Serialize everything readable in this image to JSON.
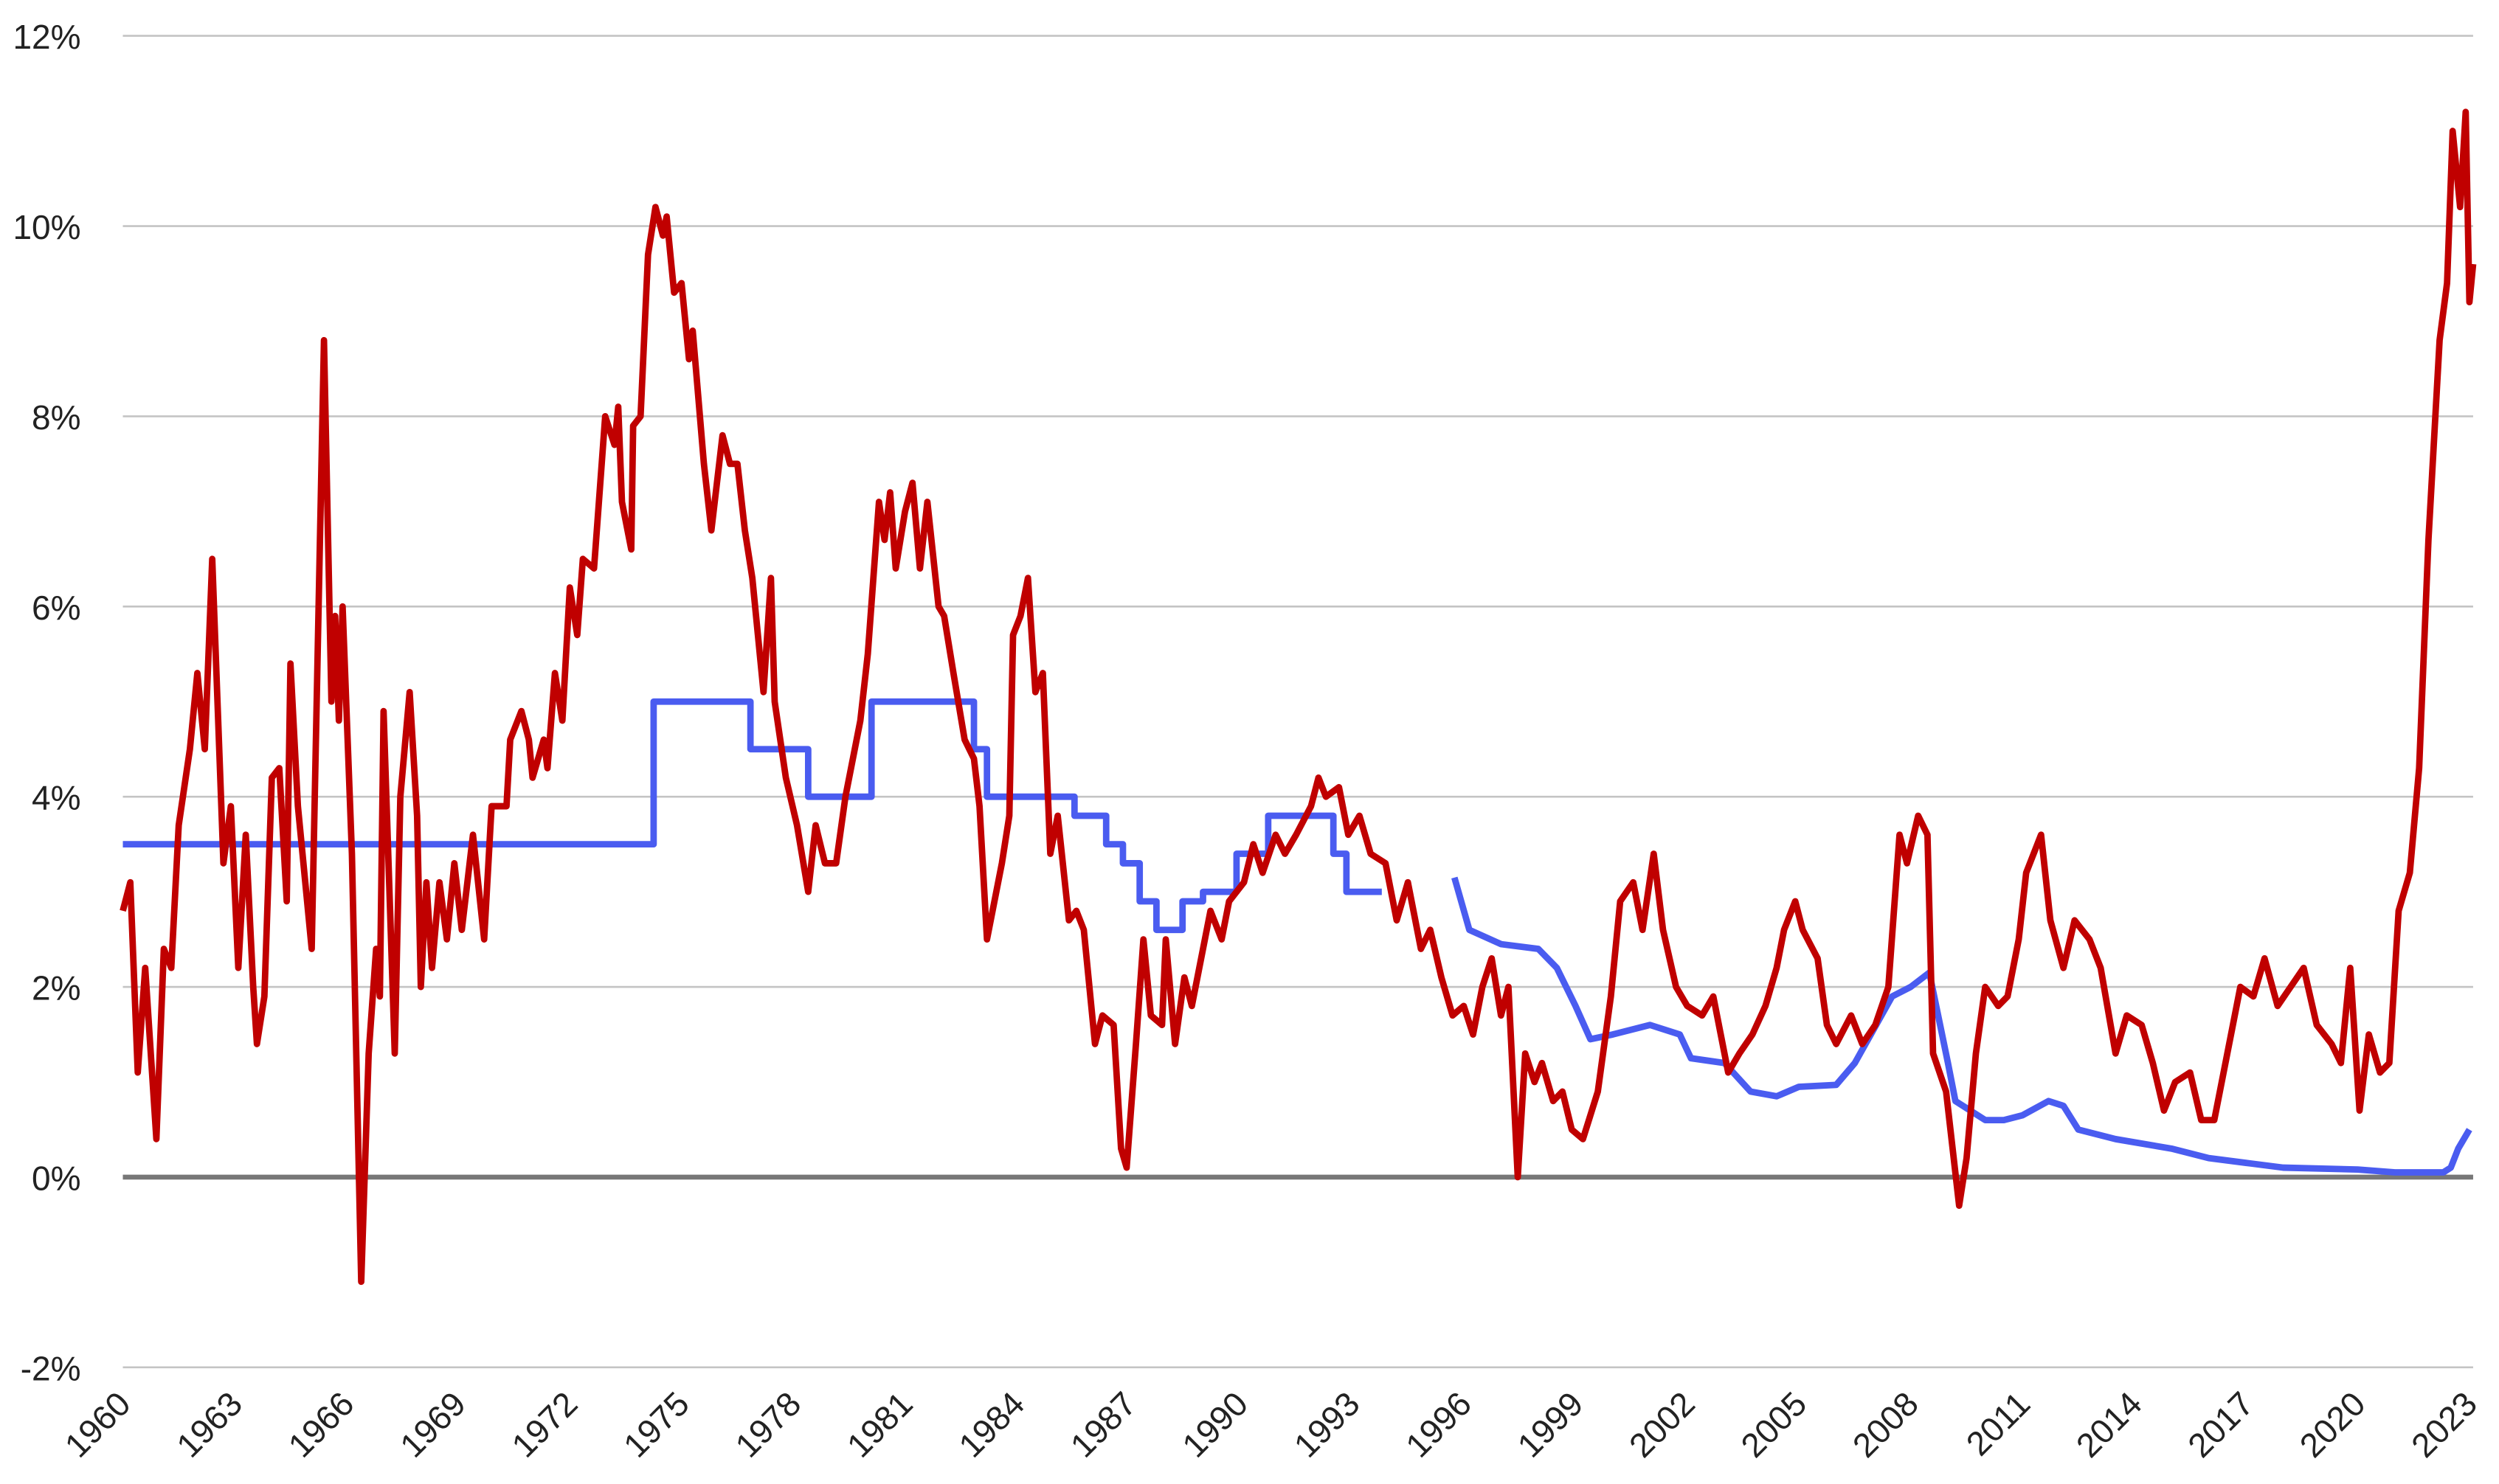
{
  "chart_data": {
    "type": "line",
    "xlim": [
      1960,
      2023.1
    ],
    "xticks": [
      1960,
      1963,
      1966,
      1969,
      1972,
      1975,
      1978,
      1981,
      1984,
      1987,
      1990,
      1993,
      1996,
      1999,
      2002,
      2005,
      2008,
      2011,
      2014,
      2017,
      2020,
      2023
    ],
    "ylim": [
      -2,
      12
    ],
    "yticks": [
      {
        "value": -2,
        "label": "-2%"
      },
      {
        "value": 0,
        "label": "0%"
      },
      {
        "value": 2,
        "label": "2%"
      },
      {
        "value": 4,
        "label": "4%"
      },
      {
        "value": 6,
        "label": "6%"
      },
      {
        "value": 8,
        "label": "8%"
      },
      {
        "value": 10,
        "label": "10%"
      },
      {
        "value": 12,
        "label": "12%"
      }
    ],
    "grid": true,
    "series": [
      {
        "color": "#4a5cf0",
        "x": [
          1960,
          1974.25,
          1974.25,
          1976.85,
          1976.85,
          1978.4,
          1978.4,
          1980.1,
          1980.1,
          1982.85,
          1982.85,
          1983.2,
          1983.2,
          1985.55,
          1985.55,
          1986.4,
          1986.4,
          1986.85,
          1986.85,
          1987.3,
          1987.3,
          1987.75,
          1987.75,
          1988.45,
          1988.45,
          1989.0,
          1989.0,
          1989.9,
          1989.9,
          1990.75,
          1990.75,
          1992.5,
          1992.5,
          1992.85,
          1992.85,
          1993.8,
          1994.8,
          1995.75,
          1996.15,
          1997,
          1998,
          1998.5,
          1999,
          1999.4,
          2000,
          2001,
          2001.8,
          2002.1,
          2003,
          2003.7,
          2004.4,
          2005,
          2006,
          2006.5,
          2007.5,
          2008,
          2008.5,
          2009,
          2009.2,
          2010,
          2010.5,
          2011,
          2011.7,
          2012.1,
          2012.5,
          2013.5,
          2015,
          2016,
          2017,
          2018,
          2020,
          2021,
          2022.3,
          2022.5,
          2022.7,
          2023
        ],
        "values": [
          3.5,
          3.5,
          5,
          5,
          4.5,
          4.5,
          4,
          4,
          5,
          5,
          4.5,
          4.5,
          4,
          4,
          3.8,
          3.8,
          3.5,
          3.5,
          3.3,
          3.3,
          2.9,
          2.9,
          2.6,
          2.6,
          2.9,
          2.9,
          3,
          3,
          3.4,
          3.4,
          3.8,
          3.8,
          3.4,
          3.4,
          3,
          3,
          null,
          3.15,
          2.6,
          2.45,
          2.4,
          2.2,
          1.8,
          1.45,
          1.5,
          1.6,
          1.5,
          1.25,
          1.2,
          0.9,
          0.85,
          0.95,
          0.97,
          1.2,
          1.9,
          2.0,
          2.15,
          1.2,
          0.8,
          0.6,
          0.6,
          0.65,
          0.8,
          0.75,
          0.5,
          0.4,
          0.3,
          0.2,
          0.15,
          0.1,
          0.08,
          0.05,
          0.05,
          0.1,
          0.3,
          0.5
        ]
      },
      {
        "color": "#c00000",
        "x": [
          1960.0,
          1960.2,
          1960.4,
          1960.6,
          1960.9,
          1961.1,
          1961.3,
          1961.5,
          1961.8,
          1962.0,
          1962.2,
          1962.4,
          1962.7,
          1962.9,
          1963.1,
          1963.3,
          1963.5,
          1963.6,
          1963.8,
          1964.0,
          1964.2,
          1964.4,
          1964.5,
          1964.7,
          1965.07,
          1965.4,
          1965.6,
          1965.7,
          1965.8,
          1965.9,
          1966.15,
          1966.4,
          1966.6,
          1966.8,
          1966.9,
          1967.0,
          1967.3,
          1967.45,
          1967.7,
          1967.9,
          1968.0,
          1968.15,
          1968.3,
          1968.5,
          1968.7,
          1968.9,
          1969.1,
          1969.4,
          1969.7,
          1969.9,
          1970.3,
          1970.4,
          1970.7,
          1970.9,
          1971.0,
          1971.3,
          1971.4,
          1971.6,
          1971.8,
          1972.0,
          1972.2,
          1972.35,
          1972.65,
          1972.95,
          1973.2,
          1973.3,
          1973.4,
          1973.65,
          1973.7,
          1973.9,
          1974.1,
          1974.3,
          1974.5,
          1974.6,
          1974.8,
          1975.0,
          1975.2,
          1975.3,
          1975.6,
          1975.8,
          1976.1,
          1976.3,
          1976.5,
          1976.7,
          1976.9,
          1977.2,
          1977.4,
          1977.5,
          1977.8,
          1978.1,
          1978.4,
          1978.6,
          1978.85,
          1979.15,
          1979.4,
          1979.8,
          1980.0,
          1980.3,
          1980.45,
          1980.6,
          1980.75,
          1981.0,
          1981.2,
          1981.4,
          1981.6,
          1981.9,
          1982.05,
          1982.3,
          1982.6,
          1982.85,
          1983.0,
          1983.2,
          1983.6,
          1983.8,
          1983.9,
          1984.1,
          1984.3,
          1984.5,
          1984.7,
          1984.9,
          1985.1,
          1985.4,
          1985.6,
          1985.8,
          1986.1,
          1986.3,
          1986.6,
          1986.8,
          1986.95,
          1987.2,
          1987.4,
          1987.6,
          1987.9,
          1988.0,
          1988.25,
          1988.5,
          1988.7,
          1988.9,
          1989.2,
          1989.5,
          1989.7,
          1990.1,
          1990.35,
          1990.6,
          1990.95,
          1991.2,
          1991.5,
          1991.9,
          1992.1,
          1992.3,
          1992.65,
          1992.9,
          1993.2,
          1993.5,
          1993.9,
          1994.2,
          1994.5,
          1994.85,
          1995.1,
          1995.4,
          1995.7,
          1996.0,
          1996.25,
          1996.5,
          1996.75,
          1997.0,
          1997.2,
          1997.45,
          1997.65,
          1997.9,
          1998.1,
          1998.4,
          1998.65,
          1998.9,
          1999.2,
          1999.6,
          1999.95,
          2000.2,
          2000.55,
          2000.8,
          2001.1,
          2001.35,
          2001.7,
          2002.0,
          2002.4,
          2002.7,
          2003.1,
          2003.4,
          2003.75,
          2004.1,
          2004.4,
          2004.6,
          2004.9,
          2005.1,
          2005.5,
          2005.75,
          2006.0,
          2006.4,
          2006.7,
          2007.05,
          2007.4,
          2007.7,
          2007.9,
          2008.2,
          2008.45,
          2008.6,
          2008.95,
          2009.3,
          2009.5,
          2009.75,
          2010.0,
          2010.35,
          2010.6,
          2010.9,
          2011.1,
          2011.5,
          2011.75,
          2012.1,
          2012.4,
          2012.8,
          2013.1,
          2013.5,
          2013.8,
          2014.2,
          2014.5,
          2014.8,
          2015.1,
          2015.5,
          2015.8,
          2016.15,
          2016.5,
          2016.85,
          2017.2,
          2017.5,
          2017.85,
          2018.2,
          2018.55,
          2018.9,
          2019.3,
          2019.55,
          2019.8,
          2020.05,
          2020.3,
          2020.6,
          2020.85,
          2021.1,
          2021.4,
          2021.65,
          2021.9,
          2022.2,
          2022.4,
          2022.55,
          2022.75,
          2022.9,
          2023.0,
          2023.1
        ],
        "values": [
          2.8,
          3.1,
          1.1,
          2.2,
          0.4,
          2.4,
          2.2,
          3.7,
          4.5,
          5.3,
          4.5,
          6.5,
          3.3,
          3.9,
          2.2,
          3.6,
          2.0,
          1.4,
          1.9,
          4.2,
          4.3,
          2.9,
          5.4,
          3.9,
          2.4,
          8.8,
          5.0,
          5.9,
          4.8,
          6.0,
          3.4,
          -1.1,
          1.3,
          2.4,
          1.9,
          4.9,
          1.3,
          4.0,
          5.1,
          3.8,
          2.0,
          3.1,
          2.2,
          3.1,
          2.5,
          3.3,
          2.6,
          3.6,
          2.5,
          3.9,
          3.9,
          4.6,
          4.9,
          4.6,
          4.2,
          4.6,
          4.3,
          5.3,
          4.8,
          6.2,
          5.7,
          6.5,
          6.4,
          8.0,
          7.7,
          8.1,
          7.1,
          6.6,
          7.9,
          8.0,
          9.7,
          10.2,
          9.9,
          10.1,
          9.3,
          9.4,
          8.6,
          8.9,
          7.5,
          6.8,
          7.8,
          7.5,
          7.5,
          6.8,
          6.3,
          5.1,
          6.3,
          5.0,
          4.2,
          3.7,
          3.0,
          3.7,
          3.3,
          3.3,
          4.0,
          4.8,
          5.5,
          7.1,
          6.7,
          7.2,
          6.4,
          7.0,
          7.3,
          6.4,
          7.1,
          6.0,
          5.9,
          5.3,
          4.6,
          4.4,
          3.9,
          2.5,
          3.3,
          3.8,
          5.7,
          5.9,
          6.3,
          5.1,
          5.3,
          3.4,
          3.8,
          2.7,
          2.8,
          2.6,
          1.4,
          1.7,
          1.6,
          0.3,
          0.1,
          1.4,
          2.5,
          1.7,
          1.6,
          2.5,
          1.4,
          2.1,
          1.8,
          2.2,
          2.8,
          2.5,
          2.9,
          3.1,
          3.5,
          3.2,
          3.6,
          3.4,
          3.6,
          3.9,
          4.2,
          4.0,
          4.1,
          3.6,
          3.8,
          3.4,
          3.3,
          2.7,
          3.1,
          2.4,
          2.6,
          2.1,
          1.7,
          1.8,
          1.5,
          2.0,
          2.3,
          1.7,
          2.0,
          0.0,
          1.3,
          1.0,
          1.2,
          0.8,
          0.9,
          0.5,
          0.4,
          0.9,
          1.9,
          2.9,
          3.1,
          2.6,
          3.4,
          2.6,
          2.0,
          1.8,
          1.7,
          1.9,
          1.1,
          1.3,
          1.5,
          1.8,
          2.2,
          2.6,
          2.9,
          2.6,
          2.3,
          1.6,
          1.4,
          1.7,
          1.4,
          1.6,
          2.0,
          3.6,
          3.3,
          3.8,
          3.6,
          1.3,
          0.9,
          -0.3,
          0.2,
          1.3,
          2.0,
          1.8,
          1.9,
          2.5,
          3.2,
          3.6,
          2.7,
          2.2,
          2.7,
          2.5,
          2.2,
          1.3,
          1.7,
          1.6,
          1.2,
          0.7,
          1.0,
          1.1,
          0.6,
          0.6,
          1.3,
          2.0,
          1.9,
          2.3,
          1.8,
          2.0,
          2.2,
          1.6,
          1.4,
          1.2,
          2.2,
          0.7,
          1.5,
          1.1,
          1.2,
          2.8,
          3.2,
          4.3,
          6.7,
          8.8,
          9.4,
          11.0,
          10.2,
          11.2,
          9.2,
          9.6
        ]
      }
    ]
  }
}
